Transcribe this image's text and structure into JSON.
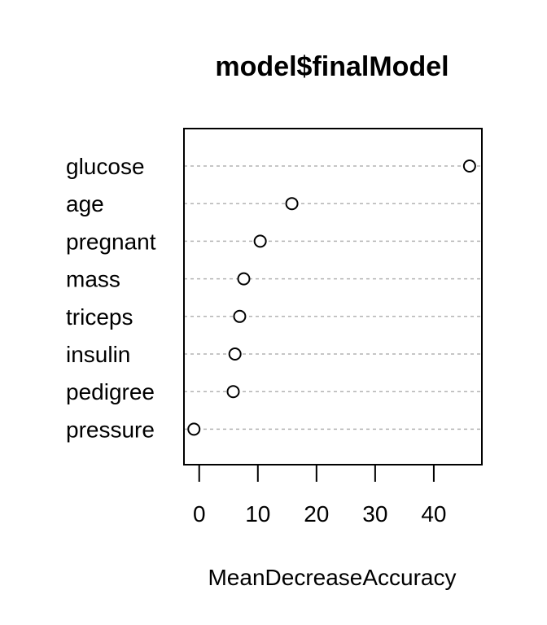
{
  "chart_data": {
    "type": "scatter",
    "title": "model$finalModel",
    "xlabel": "MeanDecreaseAccuracy",
    "ylabel": "",
    "categories": [
      "glucose",
      "age",
      "pregnant",
      "mass",
      "triceps",
      "insulin",
      "pedigree",
      "pressure"
    ],
    "values": [
      46.1,
      15.8,
      10.4,
      7.6,
      6.9,
      6.1,
      5.8,
      -0.9
    ],
    "xlim": [
      -2.6,
      48.2
    ],
    "xticks": [
      "0",
      "10",
      "20",
      "30",
      "40"
    ],
    "grid": true,
    "legend": "none"
  }
}
